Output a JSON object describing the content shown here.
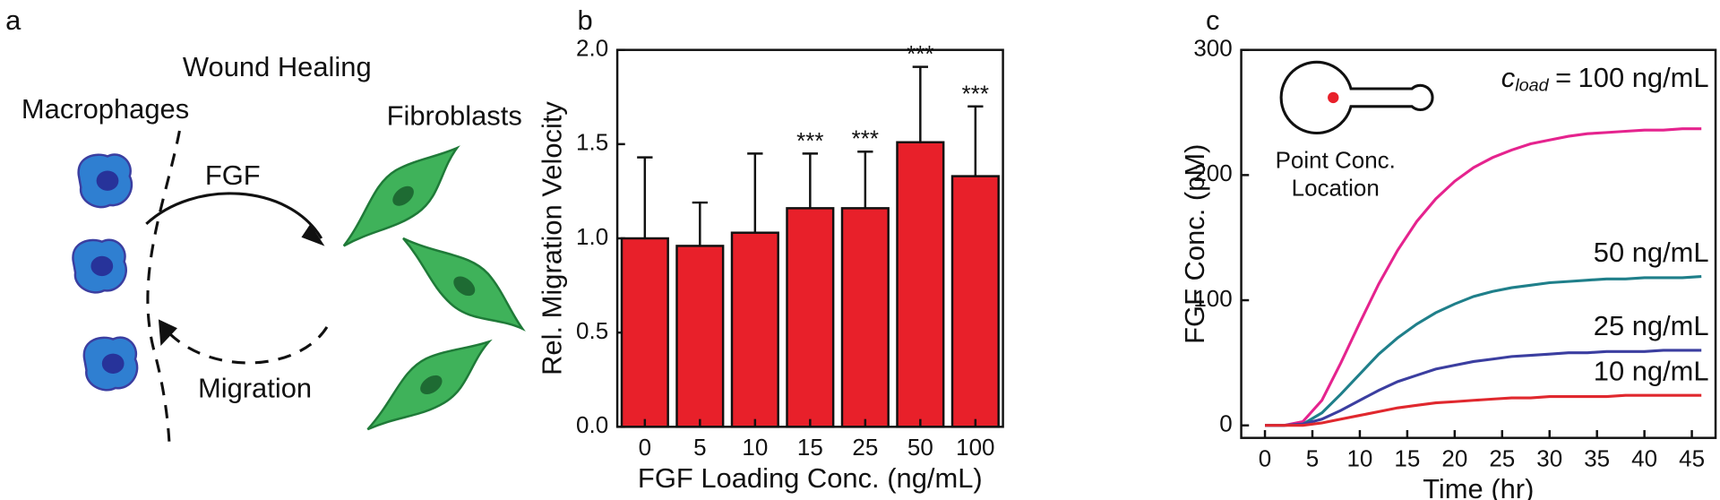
{
  "diagram": {
    "panel_label": "a",
    "title": "Wound Healing",
    "left_label": "Macrophages",
    "right_label": "Fibroblasts",
    "top_arrow_label": "FGF",
    "bottom_arrow_label": "Migration"
  },
  "chart_data": [
    {
      "type": "bar",
      "panel_label": "b",
      "categories": [
        "0",
        "5",
        "10",
        "15",
        "25",
        "50",
        "100"
      ],
      "values": [
        1.0,
        0.96,
        1.03,
        1.16,
        1.16,
        1.51,
        1.33
      ],
      "errors": [
        0.43,
        0.23,
        0.42,
        0.29,
        0.3,
        0.4,
        0.37
      ],
      "significance": [
        null,
        null,
        null,
        "***",
        "***",
        "***",
        "***"
      ],
      "color": "#e8202a",
      "ylim": [
        0,
        2
      ],
      "yticks": [
        {
          "value": 0,
          "label": "0.0"
        },
        0.5,
        {
          "value": 1,
          "label": "1.0"
        },
        1.5,
        {
          "value": 2,
          "label": "2.0"
        }
      ],
      "x_label": "FGF Loading Conc. (ng/mL)",
      "y_label": "Rel. Migration Velocity"
    },
    {
      "type": "line",
      "panel_label": "c",
      "x": [
        0,
        2,
        4,
        6,
        8,
        10,
        12,
        14,
        16,
        18,
        20,
        22,
        24,
        26,
        28,
        30,
        32,
        34,
        36,
        38,
        40,
        42,
        44,
        46
      ],
      "series": [
        {
          "name": "100 ng/mL",
          "color": "#e5238e",
          "values": [
            0,
            0,
            3,
            20,
            50,
            82,
            113,
            140,
            163,
            181,
            195,
            206,
            214,
            220,
            225,
            228,
            231,
            233,
            234,
            235,
            236,
            236,
            237,
            237
          ]
        },
        {
          "name": "50 ng/mL",
          "color": "#1f7f8a",
          "values": [
            0,
            0,
            1,
            10,
            25,
            41,
            57,
            70,
            81,
            90,
            97,
            103,
            107,
            110,
            112,
            114,
            115,
            116,
            117,
            117,
            118,
            118,
            118,
            119
          ]
        },
        {
          "name": "25 ng/mL",
          "color": "#3b3ea0",
          "values": [
            0,
            0,
            1,
            5,
            12,
            20,
            28,
            35,
            40,
            45,
            48,
            51,
            53,
            55,
            56,
            57,
            58,
            58,
            59,
            59,
            59,
            60,
            60,
            60
          ]
        },
        {
          "name": "10 ng/mL",
          "color": "#e0282e",
          "values": [
            0,
            0,
            0,
            2,
            5,
            8,
            11,
            14,
            16,
            18,
            19,
            20,
            21,
            22,
            22,
            23,
            23,
            23,
            23,
            24,
            24,
            24,
            24,
            24
          ]
        }
      ],
      "label_prefix": {
        "var": "c",
        "sub": "load",
        "op": "="
      },
      "inset_text": [
        "Point Conc.",
        "Location"
      ],
      "xlim": [
        -2.5,
        47.5
      ],
      "xticks": [
        0,
        5,
        10,
        15,
        20,
        25,
        30,
        35,
        40,
        45
      ],
      "ylim": [
        -10,
        300
      ],
      "yticks": [
        0,
        100,
        200,
        300
      ],
      "x_label": "Time (hr)",
      "y_label": "FGF Conc. (pM)"
    }
  ]
}
